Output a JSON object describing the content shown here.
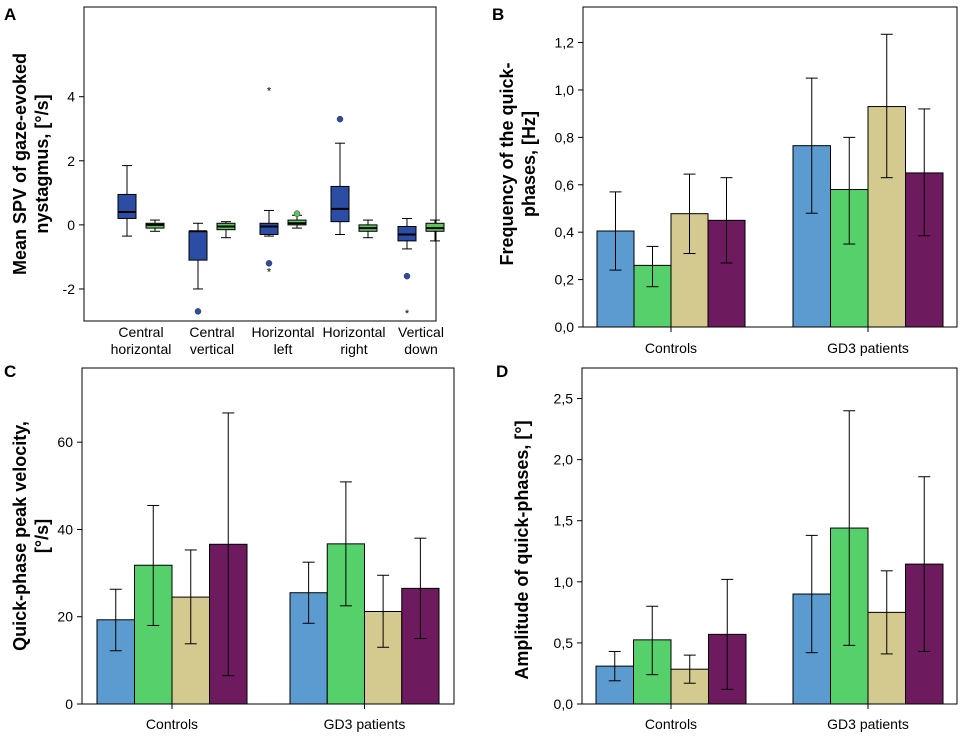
{
  "colors": {
    "box_blue": "#2b4da3",
    "box_green": "#5ec45e",
    "outlier": "#2b4da3",
    "s1": "#5b9bd0",
    "s2": "#55d06a",
    "s3": "#d4c98e",
    "s4": "#6e1a5e"
  },
  "chart_data": [
    {
      "id": "A",
      "letter": "A",
      "type": "box",
      "ylabel_lines": [
        "Mean SPV of gaze-evoked",
        "nystagmus, [°/s]"
      ],
      "ylim": [
        -3,
        6.8
      ],
      "yticks": [
        4,
        2,
        0,
        -2
      ],
      "ytick_labels": [
        "4",
        "2",
        "0",
        "-2"
      ],
      "groups": [
        {
          "label_lines": [
            "Central",
            "horizontal"
          ],
          "boxes": [
            {
              "series": "blue",
              "q1": 0.2,
              "median": 0.4,
              "q3": 0.95,
              "lo": -0.35,
              "hi": 1.85,
              "outliers": [],
              "extremes": []
            },
            {
              "series": "green",
              "q1": -0.1,
              "median": 0.0,
              "q3": 0.05,
              "lo": -0.2,
              "hi": 0.15,
              "outliers": [],
              "extremes": []
            }
          ]
        },
        {
          "label_lines": [
            "Central",
            "vertical"
          ],
          "boxes": [
            {
              "series": "blue",
              "q1": -1.1,
              "median": -0.2,
              "q3": -0.2,
              "lo": -2.0,
              "hi": 0.05,
              "outliers": [
                -2.7
              ],
              "extremes": []
            },
            {
              "series": "green",
              "q1": -0.15,
              "median": -0.05,
              "q3": 0.05,
              "lo": -0.4,
              "hi": 0.1,
              "outliers": [],
              "extremes": []
            }
          ]
        },
        {
          "label_lines": [
            "Horizontal",
            "left"
          ],
          "boxes": [
            {
              "series": "blue",
              "q1": -0.3,
              "median": -0.05,
              "q3": 0.05,
              "lo": -0.35,
              "hi": 0.45,
              "outliers": [
                -1.2
              ],
              "extremes": [
                4.2,
                -1.45
              ]
            },
            {
              "series": "green",
              "q1": 0.0,
              "median": 0.05,
              "q3": 0.15,
              "lo": -0.1,
              "hi": 0.3,
              "outliers": [
                0.35
              ],
              "extremes": []
            }
          ]
        },
        {
          "label_lines": [
            "Horizontal",
            "right"
          ],
          "boxes": [
            {
              "series": "blue",
              "q1": 0.1,
              "median": 0.5,
              "q3": 1.2,
              "lo": -0.3,
              "hi": 2.55,
              "outliers": [
                3.3
              ],
              "extremes": []
            },
            {
              "series": "green",
              "q1": -0.2,
              "median": -0.1,
              "q3": 0.0,
              "lo": -0.4,
              "hi": 0.15,
              "outliers": [],
              "extremes": []
            }
          ]
        },
        {
          "label_lines": [
            "Vertical",
            "down"
          ],
          "boxes": [
            {
              "series": "blue",
              "q1": -0.5,
              "median": -0.3,
              "q3": -0.05,
              "lo": -0.75,
              "hi": 0.2,
              "outliers": [
                -1.6
              ],
              "extremes": [
                -2.75
              ]
            },
            {
              "series": "green",
              "q1": -0.2,
              "median": -0.1,
              "q3": 0.05,
              "lo": -0.5,
              "hi": 0.15,
              "outliers": [],
              "extremes": []
            }
          ]
        }
      ]
    },
    {
      "id": "B",
      "letter": "B",
      "type": "bar",
      "ylabel_lines": [
        "Frequency of the quick-",
        "phases, [Hz]"
      ],
      "ylim": [
        0,
        1.35
      ],
      "yticks": [
        0,
        0.2,
        0.4,
        0.6,
        0.8,
        1.0,
        1.2
      ],
      "ytick_labels": [
        "0,0",
        "0,2",
        "0,4",
        "0,6",
        "0,8",
        "1,0",
        "1,2"
      ],
      "categories": [
        "Controls",
        "GD3 patients"
      ],
      "series": [
        {
          "values": [
            0.405,
            0.765
          ],
          "err_lo": [
            0.24,
            0.48
          ],
          "err_hi": [
            0.57,
            1.05
          ]
        },
        {
          "values": [
            0.26,
            0.58
          ],
          "err_lo": [
            0.17,
            0.35
          ],
          "err_hi": [
            0.34,
            0.8
          ]
        },
        {
          "values": [
            0.478,
            0.93
          ],
          "err_lo": [
            0.31,
            0.63
          ],
          "err_hi": [
            0.645,
            1.235
          ]
        },
        {
          "values": [
            0.45,
            0.65
          ],
          "err_lo": [
            0.27,
            0.385
          ],
          "err_hi": [
            0.63,
            0.92
          ]
        }
      ]
    },
    {
      "id": "C",
      "letter": "C",
      "type": "bar",
      "ylabel_lines": [
        "Quick-phase peak velocity,",
        "[°/s]"
      ],
      "ylim": [
        0,
        77
      ],
      "yticks": [
        0,
        20,
        40,
        60
      ],
      "ytick_labels": [
        "0",
        "20",
        "40",
        "60"
      ],
      "categories": [
        "Controls",
        "GD3 patients"
      ],
      "series": [
        {
          "values": [
            19.3,
            25.5
          ],
          "err_lo": [
            12.2,
            18.5
          ],
          "err_hi": [
            26.3,
            32.5
          ]
        },
        {
          "values": [
            31.8,
            36.7
          ],
          "err_lo": [
            18.0,
            22.5
          ],
          "err_hi": [
            45.5,
            50.9
          ]
        },
        {
          "values": [
            24.5,
            21.2
          ],
          "err_lo": [
            13.8,
            13.0
          ],
          "err_hi": [
            35.3,
            29.5
          ]
        },
        {
          "values": [
            36.6,
            26.5
          ],
          "err_lo": [
            6.5,
            15.0
          ],
          "err_hi": [
            66.7,
            38.0
          ]
        }
      ]
    },
    {
      "id": "D",
      "letter": "D",
      "type": "bar",
      "ylabel_lines": [
        "Amplitude of quick-phases, [°]"
      ],
      "ylim": [
        0,
        2.75
      ],
      "yticks": [
        0,
        0.5,
        1.0,
        1.5,
        2.0,
        2.5
      ],
      "ytick_labels": [
        "0,0",
        "0,5",
        "1,0",
        "1,5",
        "2,0",
        "2,5"
      ],
      "categories": [
        "Controls",
        "GD3 patients"
      ],
      "series": [
        {
          "values": [
            0.31,
            0.9
          ],
          "err_lo": [
            0.19,
            0.42
          ],
          "err_hi": [
            0.43,
            1.38
          ]
        },
        {
          "values": [
            0.525,
            1.44
          ],
          "err_lo": [
            0.24,
            0.48
          ],
          "err_hi": [
            0.8,
            2.4
          ]
        },
        {
          "values": [
            0.285,
            0.75
          ],
          "err_lo": [
            0.17,
            0.41
          ],
          "err_hi": [
            0.4,
            1.09
          ]
        },
        {
          "values": [
            0.57,
            1.145
          ],
          "err_lo": [
            0.12,
            0.43
          ],
          "err_hi": [
            1.02,
            1.86
          ]
        }
      ]
    }
  ]
}
